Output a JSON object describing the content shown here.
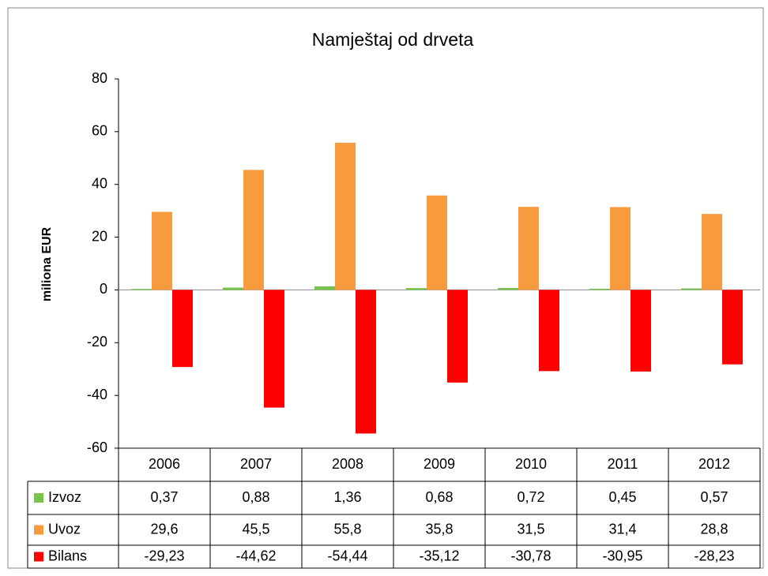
{
  "chart_data": {
    "type": "bar",
    "title": "Namještaj od drveta",
    "y_label": "miliona EUR",
    "categories": [
      "2006",
      "2007",
      "2008",
      "2009",
      "2010",
      "2011",
      "2012"
    ],
    "series": [
      {
        "name": "Izvoz",
        "color": "#77c34c",
        "values": [
          0.37,
          0.88,
          1.36,
          0.68,
          0.72,
          0.45,
          0.57
        ],
        "value_labels": [
          "0,37",
          "0,88",
          "1,36",
          "0,68",
          "0,72",
          "0,45",
          "0,57"
        ]
      },
      {
        "name": "Uvoz",
        "color": "#f79b3e",
        "values": [
          29.6,
          45.5,
          55.8,
          35.8,
          31.5,
          31.4,
          28.8
        ],
        "value_labels": [
          "29,6",
          "45,5",
          "55,8",
          "35,8",
          "31,5",
          "31,4",
          "28,8"
        ]
      },
      {
        "name": "Bilans",
        "color": "#ff0000",
        "values": [
          -29.23,
          -44.62,
          -54.44,
          -35.12,
          -30.78,
          -30.95,
          -28.23
        ],
        "value_labels": [
          "-29,23",
          "-44,62",
          "-54,44",
          "-35,12",
          "-30,78",
          "-30,95",
          "-28,23"
        ]
      }
    ],
    "ylim": [
      -60,
      80
    ],
    "yticks": [
      -60,
      -40,
      -20,
      0,
      20,
      40,
      60,
      80
    ],
    "grid": false
  }
}
